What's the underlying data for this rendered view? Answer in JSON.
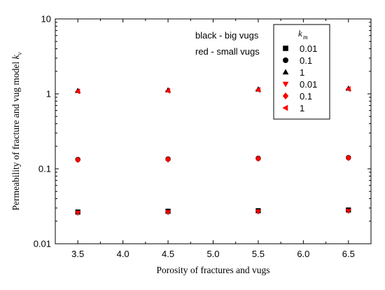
{
  "chart_data": {
    "type": "scatter",
    "xlabel": "Porosity of fractures and vugs",
    "ylabel": "Permeability of fracture and vug model k",
    "ylabel_sub": "v",
    "xlim": [
      3.25,
      6.75
    ],
    "ylim": [
      0.01,
      10
    ],
    "yscale": "log",
    "xticks": [
      3.5,
      4.0,
      4.5,
      5.0,
      5.5,
      6.0,
      6.5
    ],
    "xtick_labels": [
      "3.5",
      "4.0",
      "4.5",
      "5.0",
      "5.5",
      "6.0",
      "6.5"
    ],
    "yticks": [
      0.01,
      0.1,
      1,
      10
    ],
    "ytick_labels": [
      "0.01",
      "0.1",
      "1",
      "10"
    ],
    "grid": false,
    "annotations": [
      "black - big vugs",
      "red - small vugs"
    ],
    "legend": {
      "placement": "top-right",
      "title": "k",
      "title_sub": "m"
    },
    "series": [
      {
        "name": "0.01",
        "color": "#000000",
        "marker": "square",
        "x": [
          3.5,
          4.5,
          5.5,
          6.5
        ],
        "y": [
          0.0265,
          0.0272,
          0.0276,
          0.0282
        ]
      },
      {
        "name": "0.1",
        "color": "#000000",
        "marker": "circle",
        "x": [
          3.5,
          4.5,
          5.5,
          6.5
        ],
        "y": [
          0.133,
          0.135,
          0.138,
          0.141
        ]
      },
      {
        "name": "1",
        "color": "#000000",
        "marker": "triangle-up",
        "x": [
          3.5,
          4.5,
          5.5,
          6.5
        ],
        "y": [
          1.1,
          1.12,
          1.15,
          1.18
        ]
      },
      {
        "name": "0.01",
        "color": "#ff0000",
        "marker": "triangle-down",
        "x": [
          3.5,
          4.5,
          5.5,
          6.5
        ],
        "y": [
          0.0258,
          0.0262,
          0.0268,
          0.0273
        ]
      },
      {
        "name": "0.1",
        "color": "#ff0000",
        "marker": "diamond",
        "x": [
          3.5,
          4.5,
          5.5,
          6.5
        ],
        "y": [
          0.132,
          0.134,
          0.137,
          0.14
        ]
      },
      {
        "name": "1",
        "color": "#ff0000",
        "marker": "triangle-left",
        "x": [
          3.5,
          4.5,
          5.5,
          6.5
        ],
        "y": [
          1.08,
          1.1,
          1.13,
          1.16
        ]
      }
    ]
  }
}
